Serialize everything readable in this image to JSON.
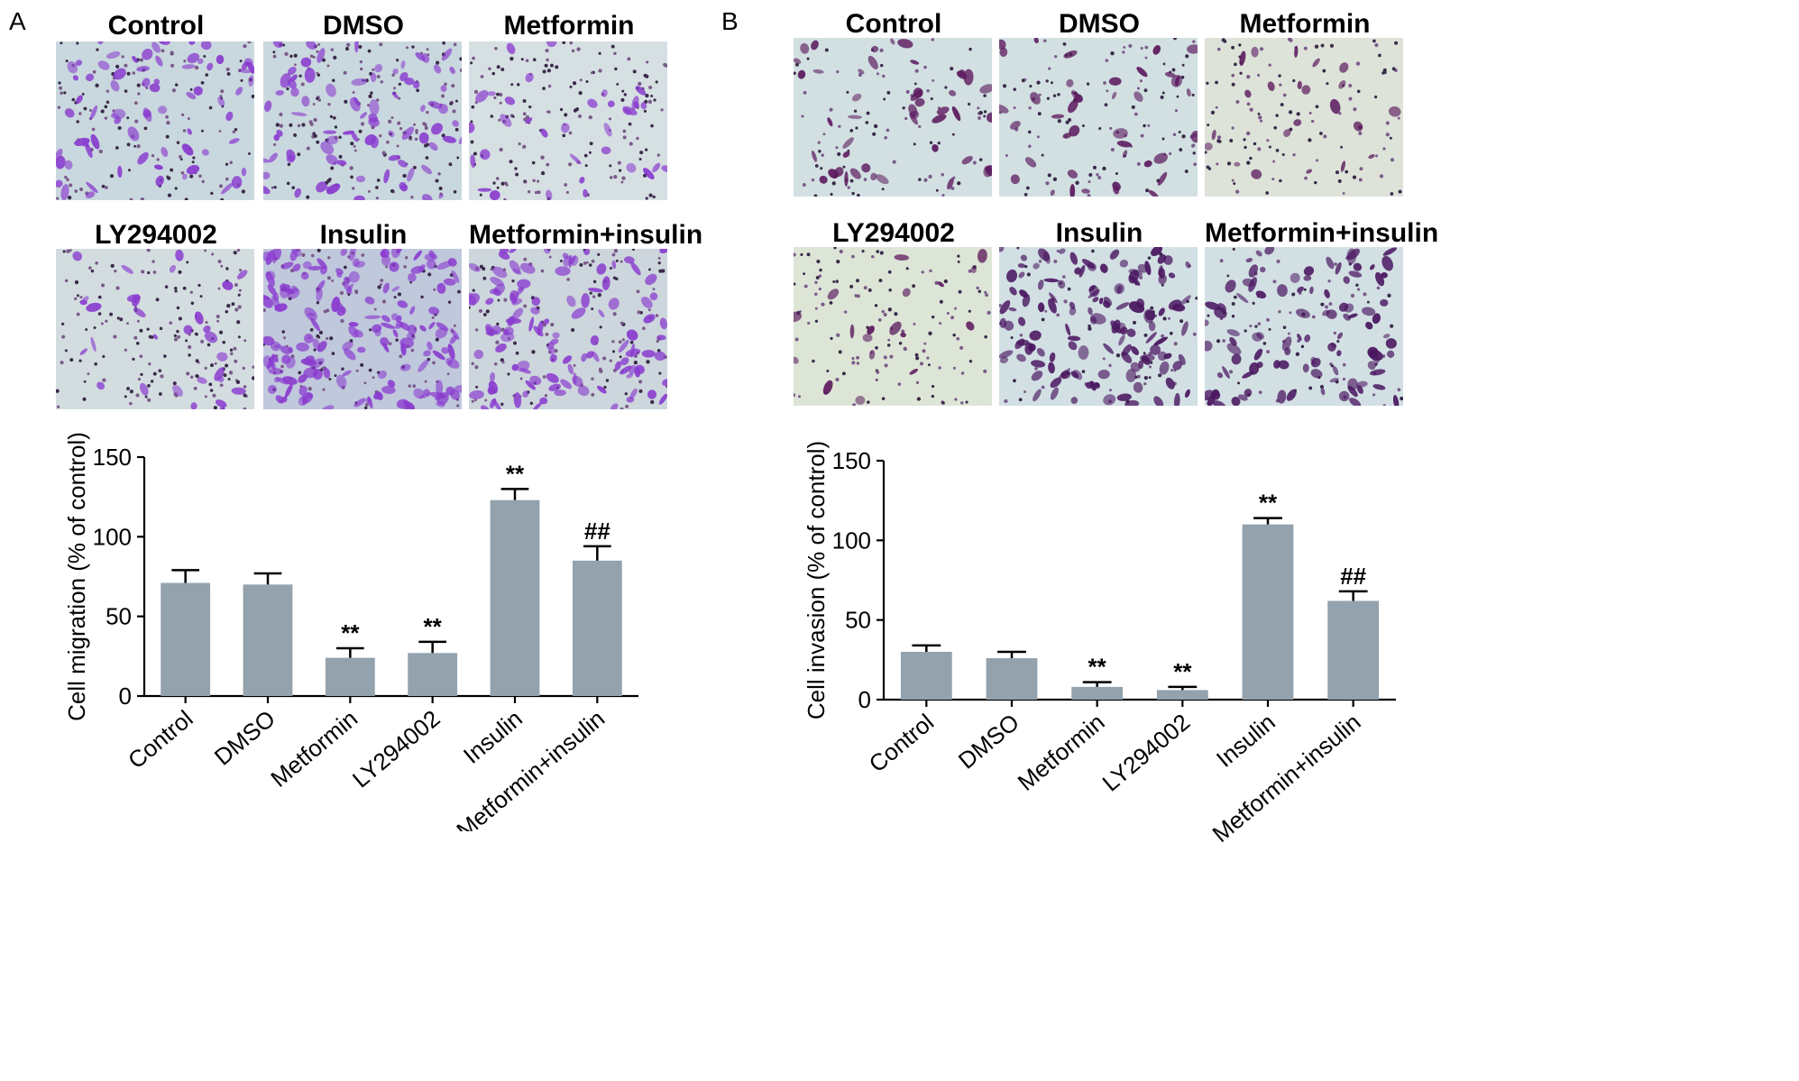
{
  "panels": [
    {
      "letter": "A",
      "images": [
        {
          "label": "Control",
          "tint": "#c9d8de",
          "cell": "#8a3ccf",
          "density": 70,
          "dots": 140
        },
        {
          "label": "DMSO",
          "tint": "#c9d8de",
          "cell": "#8a3ccf",
          "density": 80,
          "dots": 170
        },
        {
          "label": "Metformin",
          "tint": "#d6e0e2",
          "cell": "#8a3ccf",
          "density": 34,
          "dots": 160
        },
        {
          "label": "LY294002",
          "tint": "#d3dde0",
          "cell": "#8a3ccf",
          "density": 30,
          "dots": 170
        },
        {
          "label": "Insulin",
          "tint": "#c0c8dc",
          "cell": "#8a3ccf",
          "density": 170,
          "dots": 120
        },
        {
          "label": "Metformin+insulin",
          "tint": "#ccd6dc",
          "cell": "#8a3ccf",
          "density": 120,
          "dots": 140
        }
      ],
      "chart_data": {
        "type": "bar",
        "categories": [
          "Control",
          "DMSO",
          "Metformin",
          "LY294002",
          "Insulin",
          "Metformin+insulin"
        ],
        "values": [
          71,
          70,
          24,
          27,
          123,
          85
        ],
        "errors": [
          8,
          7,
          6,
          7,
          7,
          9
        ],
        "annotations": [
          "",
          "",
          "**",
          "**",
          "**",
          "##"
        ],
        "ylabel": "Cell migration (% of control)",
        "ylim": [
          0,
          150
        ],
        "yticks": [
          0,
          50,
          100,
          150
        ],
        "bar_color": "#93a2ad"
      }
    },
    {
      "letter": "B",
      "images": [
        {
          "label": "Control",
          "tint": "#d2e0e2",
          "cell": "#5c1a5e",
          "density": 46,
          "dots": 90
        },
        {
          "label": "DMSO",
          "tint": "#d2e0e2",
          "cell": "#5c1a5e",
          "density": 40,
          "dots": 110
        },
        {
          "label": "Metformin",
          "tint": "#dde3d8",
          "cell": "#5c1a5e",
          "density": 22,
          "dots": 120
        },
        {
          "label": "LY294002",
          "tint": "#dde6d6",
          "cell": "#5c1a5e",
          "density": 18,
          "dots": 130
        },
        {
          "label": "Insulin",
          "tint": "#d2e0e4",
          "cell": "#4a1660",
          "density": 130,
          "dots": 70
        },
        {
          "label": "Metformin+insulin",
          "tint": "#d2e0e4",
          "cell": "#4a1660",
          "density": 100,
          "dots": 80
        }
      ],
      "chart_data": {
        "type": "bar",
        "categories": [
          "Control",
          "DMSO",
          "Metformin",
          "LY294002",
          "Insulin",
          "Metformin+insulin"
        ],
        "values": [
          30,
          26,
          8,
          6,
          110,
          62
        ],
        "errors": [
          4,
          4,
          3,
          2,
          4,
          6
        ],
        "annotations": [
          "",
          "",
          "**",
          "**",
          "**",
          "##"
        ],
        "ylabel": "Cell invasion (% of control)",
        "ylim": [
          0,
          150
        ],
        "yticks": [
          0,
          50,
          100,
          150
        ],
        "bar_color": "#93a2ad"
      }
    }
  ]
}
